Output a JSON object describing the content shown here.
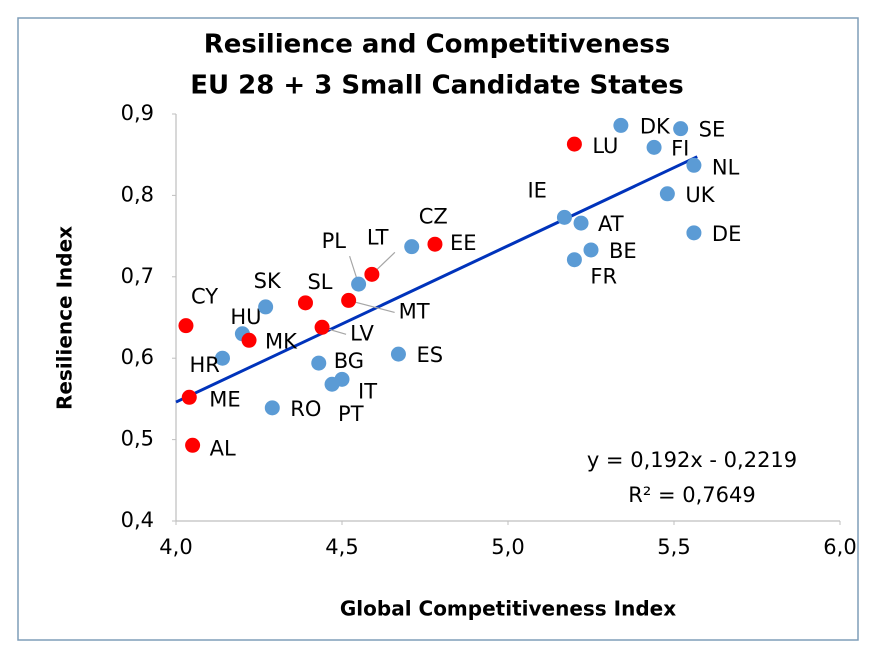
{
  "chart_data": {
    "type": "scatter",
    "title": "Resilience  and Competitiveness",
    "subtitle": "EU 28 + 3 Small Candidate States",
    "x_label": "Global Competitiveness Index",
    "y_label": "Resilience Index",
    "xlim": [
      4.0,
      6.0
    ],
    "ylim": [
      0.4,
      0.9
    ],
    "xticks": [
      {
        "value": 4.0,
        "label": "4,0"
      },
      {
        "value": 4.5,
        "label": "4,5"
      },
      {
        "value": 5.0,
        "label": "5,0"
      },
      {
        "value": 5.5,
        "label": "5,5"
      },
      {
        "value": 6.0,
        "label": "6,0"
      }
    ],
    "yticks": [
      {
        "value": 0.4,
        "label": "0,4"
      },
      {
        "value": 0.5,
        "label": "0,5"
      },
      {
        "value": 0.6,
        "label": "0,6"
      },
      {
        "value": 0.7,
        "label": "0,7"
      },
      {
        "value": 0.8,
        "label": "0,8"
      },
      {
        "value": 0.9,
        "label": "0,9"
      }
    ],
    "grid": false,
    "series": [
      {
        "color": "#5b9bd5",
        "labels": [
          "HU",
          "HR",
          "RO",
          "SK",
          "BG",
          "IT",
          "PT",
          "PL",
          "CZ",
          "ES",
          "IE",
          "AT",
          "BE",
          "FR",
          "DK",
          "FI",
          "SE",
          "NL",
          "UK",
          "DE"
        ],
        "x": [
          4.2,
          4.14,
          4.29,
          4.27,
          4.43,
          4.5,
          4.47,
          4.55,
          4.71,
          4.67,
          5.17,
          5.22,
          5.25,
          5.2,
          5.34,
          5.44,
          5.52,
          5.56,
          5.48,
          5.56
        ],
        "y": [
          0.63,
          0.6,
          0.539,
          0.663,
          0.594,
          0.574,
          0.568,
          0.691,
          0.737,
          0.605,
          0.773,
          0.766,
          0.733,
          0.721,
          0.886,
          0.859,
          0.882,
          0.837,
          0.802,
          0.754
        ]
      },
      {
        "color": "#ff0000",
        "labels": [
          "CY",
          "MK",
          "ME",
          "AL",
          "SL",
          "LV",
          "MT",
          "LT",
          "EE",
          "LU"
        ],
        "x": [
          4.03,
          4.22,
          4.04,
          4.05,
          4.39,
          4.44,
          4.52,
          4.59,
          4.78,
          5.2
        ],
        "y": [
          0.64,
          0.622,
          0.552,
          0.493,
          0.668,
          0.638,
          0.671,
          0.703,
          0.74,
          0.863
        ]
      }
    ],
    "trendline": {
      "color": "#0033bb",
      "slope": 0.192,
      "intercept": -0.2219,
      "xrange": [
        4.0,
        5.57
      ],
      "equation": "y = 0,192x - 0,2219",
      "r2": "R² = 0,7649"
    }
  }
}
